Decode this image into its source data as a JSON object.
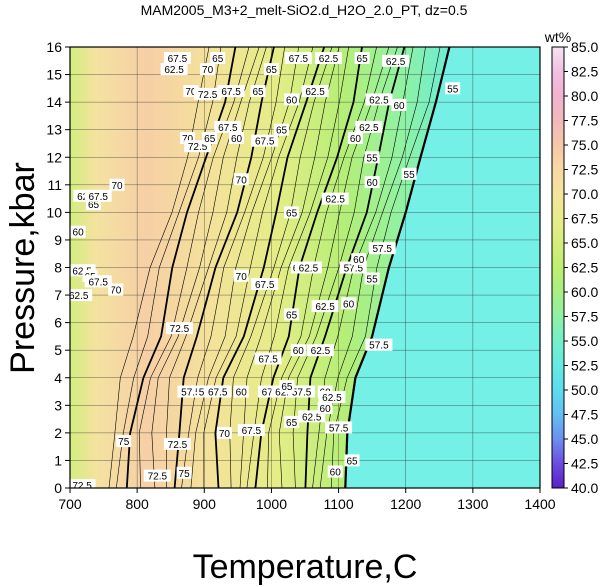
{
  "chart_data": {
    "type": "heatmap",
    "title": "MAM2005_M3+2_melt-SiO2.d_H2O_2.0_PT, dz=0.5",
    "xlabel": "Temperature,C",
    "ylabel": "Pressure,kbar",
    "xlim": [
      700,
      1400
    ],
    "ylim": [
      0,
      16
    ],
    "xticks": [
      700,
      800,
      900,
      1000,
      1100,
      1200,
      1300,
      1400
    ],
    "yticks": [
      0,
      1,
      2,
      3,
      4,
      5,
      6,
      7,
      8,
      9,
      10,
      11,
      12,
      13,
      14,
      15,
      16
    ],
    "grid": true,
    "colorbar": {
      "title": "wt%",
      "min": 40.0,
      "max": 85.0,
      "ticks": [
        "40.0",
        "42.5",
        "45.0",
        "47.5",
        "50.0",
        "52.5",
        "55.0",
        "57.5",
        "60.0",
        "62.5",
        "65.0",
        "67.5",
        "70.0",
        "72.5",
        "75.0",
        "77.5",
        "80.0",
        "82.5",
        "85.0"
      ]
    },
    "solidus_boundary": [
      {
        "t": 1110,
        "p": 0
      },
      {
        "t": 1113,
        "p": 2
      },
      {
        "t": 1125,
        "p": 4
      },
      {
        "t": 1150,
        "p": 5.5
      },
      {
        "t": 1175,
        "p": 8
      },
      {
        "t": 1200,
        "p": 10
      },
      {
        "t": 1222,
        "p": 12
      },
      {
        "t": 1245,
        "p": 14
      },
      {
        "t": 1265,
        "p": 16
      }
    ],
    "contour_labels": [
      {
        "text": "72.5",
        "t": 718,
        "p": 0.1
      },
      {
        "text": "72.5",
        "t": 830,
        "p": 0.45
      },
      {
        "text": "75",
        "t": 870,
        "p": 0.55
      },
      {
        "text": "75",
        "t": 780,
        "p": 1.7
      },
      {
        "text": "72.5",
        "t": 860,
        "p": 1.6
      },
      {
        "text": "70",
        "t": 930,
        "p": 2.0
      },
      {
        "text": "67.5",
        "t": 970,
        "p": 2.1
      },
      {
        "text": "65",
        "t": 1030,
        "p": 2.4
      },
      {
        "text": "62.5",
        "t": 1060,
        "p": 2.6
      },
      {
        "text": "60",
        "t": 1080,
        "p": 2.9
      },
      {
        "text": "57.5",
        "t": 1100,
        "p": 2.2
      },
      {
        "text": "72.5",
        "t": 863,
        "p": 5.8
      },
      {
        "text": "67.5",
        "t": 995,
        "p": 4.7
      },
      {
        "text": "65",
        "t": 1030,
        "p": 6.3
      },
      {
        "text": "62.5",
        "t": 1080,
        "p": 6.6
      },
      {
        "text": "60",
        "t": 1115,
        "p": 6.7
      },
      {
        "text": "57.5",
        "t": 1160,
        "p": 5.2
      },
      {
        "text": "60",
        "t": 1040,
        "p": 5.0
      },
      {
        "text": "62.5",
        "t": 1073,
        "p": 5.0
      },
      {
        "text": "70",
        "t": 955,
        "p": 7.7
      },
      {
        "text": "67.5",
        "t": 990,
        "p": 7.4
      },
      {
        "text": "60",
        "t": 1040,
        "p": 8.0
      },
      {
        "text": "62.5",
        "t": 1055,
        "p": 8.0
      },
      {
        "text": "57.5",
        "t": 1122,
        "p": 8.0
      },
      {
        "text": "60",
        "t": 1130,
        "p": 8.3
      },
      {
        "text": "55",
        "t": 1150,
        "p": 7.6
      },
      {
        "text": "57.5",
        "t": 1165,
        "p": 8.7
      },
      {
        "text": "70",
        "t": 768,
        "p": 7.2
      },
      {
        "text": "62.5",
        "t": 718,
        "p": 7.9
      },
      {
        "text": "65",
        "t": 730,
        "p": 7.7
      },
      {
        "text": "62.5",
        "t": 713,
        "p": 7.0
      },
      {
        "text": "67.5",
        "t": 742,
        "p": 7.5
      },
      {
        "text": "60",
        "t": 712,
        "p": 9.3
      },
      {
        "text": "62.5",
        "t": 725,
        "p": 10.6
      },
      {
        "text": "65",
        "t": 735,
        "p": 10.3
      },
      {
        "text": "67.5",
        "t": 742,
        "p": 10.6
      },
      {
        "text": "70",
        "t": 770,
        "p": 11.0
      },
      {
        "text": "70",
        "t": 955,
        "p": 11.2
      },
      {
        "text": "65",
        "t": 1030,
        "p": 10.0
      },
      {
        "text": "62.5",
        "t": 1095,
        "p": 10.5
      },
      {
        "text": "60",
        "t": 1150,
        "p": 11.1
      },
      {
        "text": "55",
        "t": 1205,
        "p": 11.4
      },
      {
        "text": "55",
        "t": 1270,
        "p": 14.5
      },
      {
        "text": "60",
        "t": 1190,
        "p": 13.9
      },
      {
        "text": "62.5",
        "t": 1160,
        "p": 14.1
      },
      {
        "text": "60",
        "t": 1030,
        "p": 14.1
      },
      {
        "text": "62.5",
        "t": 1065,
        "p": 14.4
      },
      {
        "text": "70",
        "t": 880,
        "p": 14.4
      },
      {
        "text": "72.5",
        "t": 905,
        "p": 14.3
      },
      {
        "text": "67.5",
        "t": 940,
        "p": 14.4
      },
      {
        "text": "65",
        "t": 980,
        "p": 14.4
      },
      {
        "text": "62.5",
        "t": 855,
        "p": 15.2
      },
      {
        "text": "70",
        "t": 905,
        "p": 15.2
      },
      {
        "text": "65",
        "t": 1000,
        "p": 15.2
      },
      {
        "text": "67.5",
        "t": 860,
        "p": 15.6
      },
      {
        "text": "65",
        "t": 920,
        "p": 15.6
      },
      {
        "text": "67.5",
        "t": 1040,
        "p": 15.6
      },
      {
        "text": "62.5",
        "t": 1085,
        "p": 15.6
      },
      {
        "text": "65",
        "t": 1135,
        "p": 15.6
      },
      {
        "text": "62.5",
        "t": 1185,
        "p": 15.5
      },
      {
        "text": "67.5",
        "t": 935,
        "p": 13.1
      },
      {
        "text": "65",
        "t": 1015,
        "p": 13.0
      },
      {
        "text": "62.5",
        "t": 1145,
        "p": 13.1
      },
      {
        "text": "60",
        "t": 1125,
        "p": 12.7
      },
      {
        "text": "67.5",
        "t": 990,
        "p": 12.6
      },
      {
        "text": "70",
        "t": 875,
        "p": 12.7
      },
      {
        "text": "72.5",
        "t": 890,
        "p": 12.4
      },
      {
        "text": "65",
        "t": 908,
        "p": 12.7
      },
      {
        "text": "60",
        "t": 948,
        "p": 12.7
      },
      {
        "text": "67.5",
        "t": 1000,
        "p": 3.5
      },
      {
        "text": "62.5",
        "t": 1020,
        "p": 3.5
      },
      {
        "text": "57.5",
        "t": 1045,
        "p": 3.5
      },
      {
        "text": "60",
        "t": 1080,
        "p": 3.5
      },
      {
        "text": "62.5",
        "t": 1090,
        "p": 3.3
      },
      {
        "text": "57.5",
        "t": 880,
        "p": 3.5
      },
      {
        "text": "55",
        "t": 900,
        "p": 3.5
      },
      {
        "text": "67.5",
        "t": 920,
        "p": 3.5
      },
      {
        "text": "60",
        "t": 955,
        "p": 3.5
      },
      {
        "text": "65",
        "t": 1023,
        "p": 3.7
      },
      {
        "text": "65",
        "t": 1120,
        "p": 1.0
      },
      {
        "text": "60",
        "t": 1095,
        "p": 0.6
      },
      {
        "text": "55",
        "t": 1150,
        "p": 12.0
      }
    ]
  }
}
